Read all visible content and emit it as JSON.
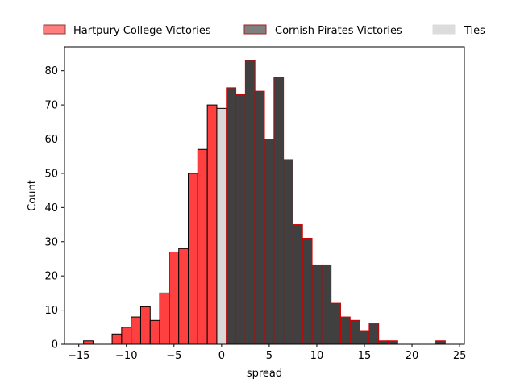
{
  "chart_data": {
    "type": "bar",
    "subtype": "histogram",
    "xlabel": "spread",
    "ylabel": "Count",
    "xlim": [
      -16.5,
      25.5
    ],
    "ylim": [
      0,
      87
    ],
    "xticks": [
      -15,
      -10,
      -5,
      0,
      5,
      10,
      15,
      20,
      25
    ],
    "yticks": [
      0,
      10,
      20,
      30,
      40,
      50,
      60,
      70,
      80
    ],
    "xtick_labels": [
      "−15",
      "−10",
      "−5",
      "0",
      "5",
      "10",
      "15",
      "20",
      "25"
    ],
    "ytick_labels": [
      "0",
      "10",
      "20",
      "30",
      "40",
      "50",
      "60",
      "70",
      "80"
    ],
    "grid": false,
    "legend": {
      "placement": "top, above plot",
      "entries": [
        {
          "label": "Hartpury College Victories",
          "fill": "#ff7f7f",
          "stroke": "#8b3a3a"
        },
        {
          "label": "Cornish Pirates Victories",
          "fill": "#7f7f7f",
          "stroke": "#a02020"
        },
        {
          "label": "Ties",
          "fill": "#dcdcdc",
          "stroke": "#dcdcdc"
        }
      ]
    },
    "series": [
      {
        "name": "Hartpury College Victories",
        "color": "#ff4040",
        "edge": "#000000",
        "bin_width": 1,
        "x": [
          -14,
          -13,
          -12,
          -11,
          -10,
          -9,
          -8,
          -7,
          -6,
          -5,
          -4,
          -3,
          -2,
          -1
        ],
        "values": [
          1,
          0,
          0,
          3,
          5,
          8,
          11,
          7,
          15,
          27,
          28,
          50,
          57,
          70
        ]
      },
      {
        "name": "Ties",
        "color": "#d8d8d8",
        "edge": "#000000",
        "bin_width": 1,
        "x": [
          0
        ],
        "values": [
          69
        ]
      },
      {
        "name": "Cornish Pirates Victories",
        "color": "#404040",
        "edge": "#cc0000",
        "bin_width": 1,
        "x": [
          1,
          2,
          3,
          4,
          5,
          6,
          7,
          8,
          9,
          10,
          11,
          12,
          13,
          14,
          15,
          16,
          17,
          18,
          19,
          20,
          21,
          22,
          23
        ],
        "values": [
          75,
          73,
          83,
          74,
          60,
          78,
          54,
          35,
          31,
          23,
          23,
          12,
          8,
          7,
          4,
          6,
          1,
          1,
          0,
          0,
          0,
          0,
          1
        ]
      }
    ]
  }
}
